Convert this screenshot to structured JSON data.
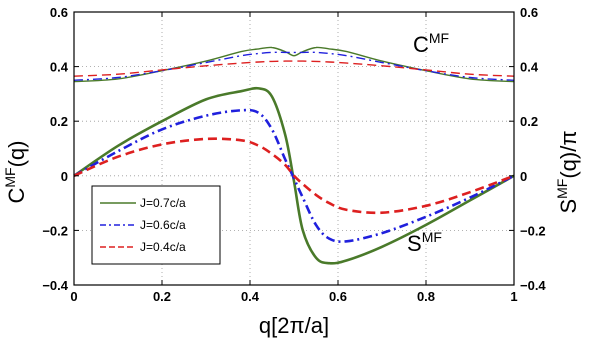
{
  "chart_data": {
    "type": "line",
    "xlabel_main": "q",
    "xlabel_bracket": "[2π/a]",
    "ylabel_left_base": "C",
    "ylabel_left_sup": "MF",
    "ylabel_left_arg": "(q)",
    "ylabel_right_base": "S",
    "ylabel_right_sup": "MF",
    "ylabel_right_arg": "(q)/π",
    "xlim": [
      0,
      1
    ],
    "ylim": [
      -0.4,
      0.6
    ],
    "xticks": [
      0,
      0.2,
      0.4,
      0.6,
      0.8,
      1
    ],
    "xtick_labels": [
      "0",
      "0.2",
      "0.4",
      "0.6",
      "0.8",
      "1"
    ],
    "yticks": [
      -0.4,
      -0.2,
      0,
      0.2,
      0.4,
      0.6
    ],
    "ytick_labels_left": [
      "−0.4",
      "−0.2",
      "0",
      "0.2",
      "0.4",
      "0.6"
    ],
    "ytick_labels_right": [
      "−0.4",
      "−0.2",
      "0",
      "0.2",
      "0.4",
      "0.6"
    ],
    "grid": true,
    "legend_position": "lower-left",
    "annotations": {
      "C_base": "C",
      "C_sup": "MF",
      "S_base": "S",
      "S_sup": "MF"
    },
    "x": [
      0,
      0.1,
      0.2,
      0.3,
      0.38,
      0.42,
      0.45,
      0.48,
      0.5,
      0.52,
      0.55,
      0.58,
      0.62,
      0.7,
      0.8,
      0.9,
      1.0
    ],
    "series": [
      {
        "name": "J=0.7c/a",
        "color": "#4a7a2a",
        "dash": "solid",
        "C": [
          0.345,
          0.355,
          0.385,
          0.42,
          0.455,
          0.465,
          0.47,
          0.455,
          0.44,
          0.455,
          0.47,
          0.465,
          0.455,
          0.42,
          0.385,
          0.355,
          0.345
        ],
        "S": [
          0,
          0.11,
          0.2,
          0.28,
          0.31,
          0.32,
          0.29,
          0.15,
          -0.02,
          -0.2,
          -0.3,
          -0.32,
          -0.31,
          -0.26,
          -0.18,
          -0.09,
          0
        ]
      },
      {
        "name": "J=0.6c/a",
        "color": "#2020dd",
        "dash": "dashdot",
        "C": [
          0.35,
          0.36,
          0.385,
          0.415,
          0.44,
          0.448,
          0.452,
          0.452,
          0.452,
          0.452,
          0.452,
          0.448,
          0.44,
          0.415,
          0.385,
          0.36,
          0.35
        ],
        "S": [
          0,
          0.09,
          0.17,
          0.22,
          0.24,
          0.23,
          0.17,
          0.06,
          -0.01,
          -0.08,
          -0.18,
          -0.23,
          -0.24,
          -0.21,
          -0.15,
          -0.08,
          0
        ]
      },
      {
        "name": "J=0.4c/a",
        "color": "#dd2020",
        "dash": "dashed",
        "C": [
          0.365,
          0.372,
          0.388,
          0.403,
          0.413,
          0.417,
          0.419,
          0.42,
          0.42,
          0.42,
          0.419,
          0.417,
          0.413,
          0.403,
          0.388,
          0.372,
          0.365
        ],
        "S": [
          0,
          0.07,
          0.115,
          0.135,
          0.13,
          0.11,
          0.08,
          0.04,
          0.0,
          -0.03,
          -0.07,
          -0.1,
          -0.125,
          -0.135,
          -0.11,
          -0.06,
          0
        ]
      }
    ]
  }
}
